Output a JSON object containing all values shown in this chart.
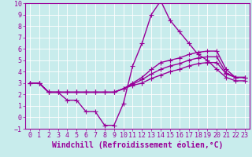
{
  "xlabel": "Windchill (Refroidissement éolien,°C)",
  "xlim": [
    -0.5,
    23.5
  ],
  "ylim": [
    -1,
    10
  ],
  "xticks": [
    0,
    1,
    2,
    3,
    4,
    5,
    6,
    7,
    8,
    9,
    10,
    11,
    12,
    13,
    14,
    15,
    16,
    17,
    18,
    19,
    20,
    21,
    22,
    23
  ],
  "yticks": [
    -1,
    0,
    1,
    2,
    3,
    4,
    5,
    6,
    7,
    8,
    9,
    10
  ],
  "bg_color": "#c8ecec",
  "line_color": "#990099",
  "grid_color": "#ffffff",
  "lines": [
    {
      "x": [
        0,
        1,
        2,
        3,
        4,
        5,
        6,
        7,
        8,
        9,
        10,
        11,
        12,
        13,
        14,
        15,
        16,
        17,
        18,
        19,
        20,
        21,
        22,
        23
      ],
      "y": [
        3.0,
        3.0,
        2.2,
        2.2,
        1.5,
        1.5,
        0.5,
        0.5,
        -0.7,
        -0.7,
        1.2,
        4.5,
        6.5,
        9.0,
        10.2,
        8.5,
        7.5,
        6.5,
        5.5,
        5.0,
        4.2,
        3.5,
        3.2,
        3.2
      ]
    },
    {
      "x": [
        0,
        1,
        2,
        3,
        4,
        5,
        6,
        7,
        8,
        9,
        10,
        11,
        12,
        13,
        14,
        15,
        16,
        17,
        18,
        19,
        20,
        21,
        22,
        23
      ],
      "y": [
        3.0,
        3.0,
        2.2,
        2.2,
        2.2,
        2.2,
        2.2,
        2.2,
        2.2,
        2.2,
        2.5,
        3.0,
        3.5,
        4.2,
        4.8,
        5.0,
        5.2,
        5.5,
        5.7,
        5.8,
        5.8,
        4.2,
        3.5,
        3.5
      ]
    },
    {
      "x": [
        0,
        1,
        2,
        3,
        4,
        5,
        6,
        7,
        8,
        9,
        10,
        11,
        12,
        13,
        14,
        15,
        16,
        17,
        18,
        19,
        20,
        21,
        22,
        23
      ],
      "y": [
        3.0,
        3.0,
        2.2,
        2.2,
        2.2,
        2.2,
        2.2,
        2.2,
        2.2,
        2.2,
        2.5,
        2.9,
        3.3,
        3.8,
        4.2,
        4.5,
        4.7,
        5.0,
        5.2,
        5.3,
        5.3,
        3.9,
        3.5,
        3.5
      ]
    },
    {
      "x": [
        0,
        1,
        2,
        3,
        4,
        5,
        6,
        7,
        8,
        9,
        10,
        11,
        12,
        13,
        14,
        15,
        16,
        17,
        18,
        19,
        20,
        21,
        22,
        23
      ],
      "y": [
        3.0,
        3.0,
        2.2,
        2.2,
        2.2,
        2.2,
        2.2,
        2.2,
        2.2,
        2.2,
        2.5,
        2.8,
        3.0,
        3.4,
        3.7,
        4.0,
        4.2,
        4.5,
        4.7,
        4.8,
        4.8,
        3.8,
        3.5,
        3.5
      ]
    }
  ],
  "marker": "+",
  "markersize": 4,
  "linewidth": 1.0,
  "tick_fontsize": 6,
  "xlabel_fontsize": 7
}
